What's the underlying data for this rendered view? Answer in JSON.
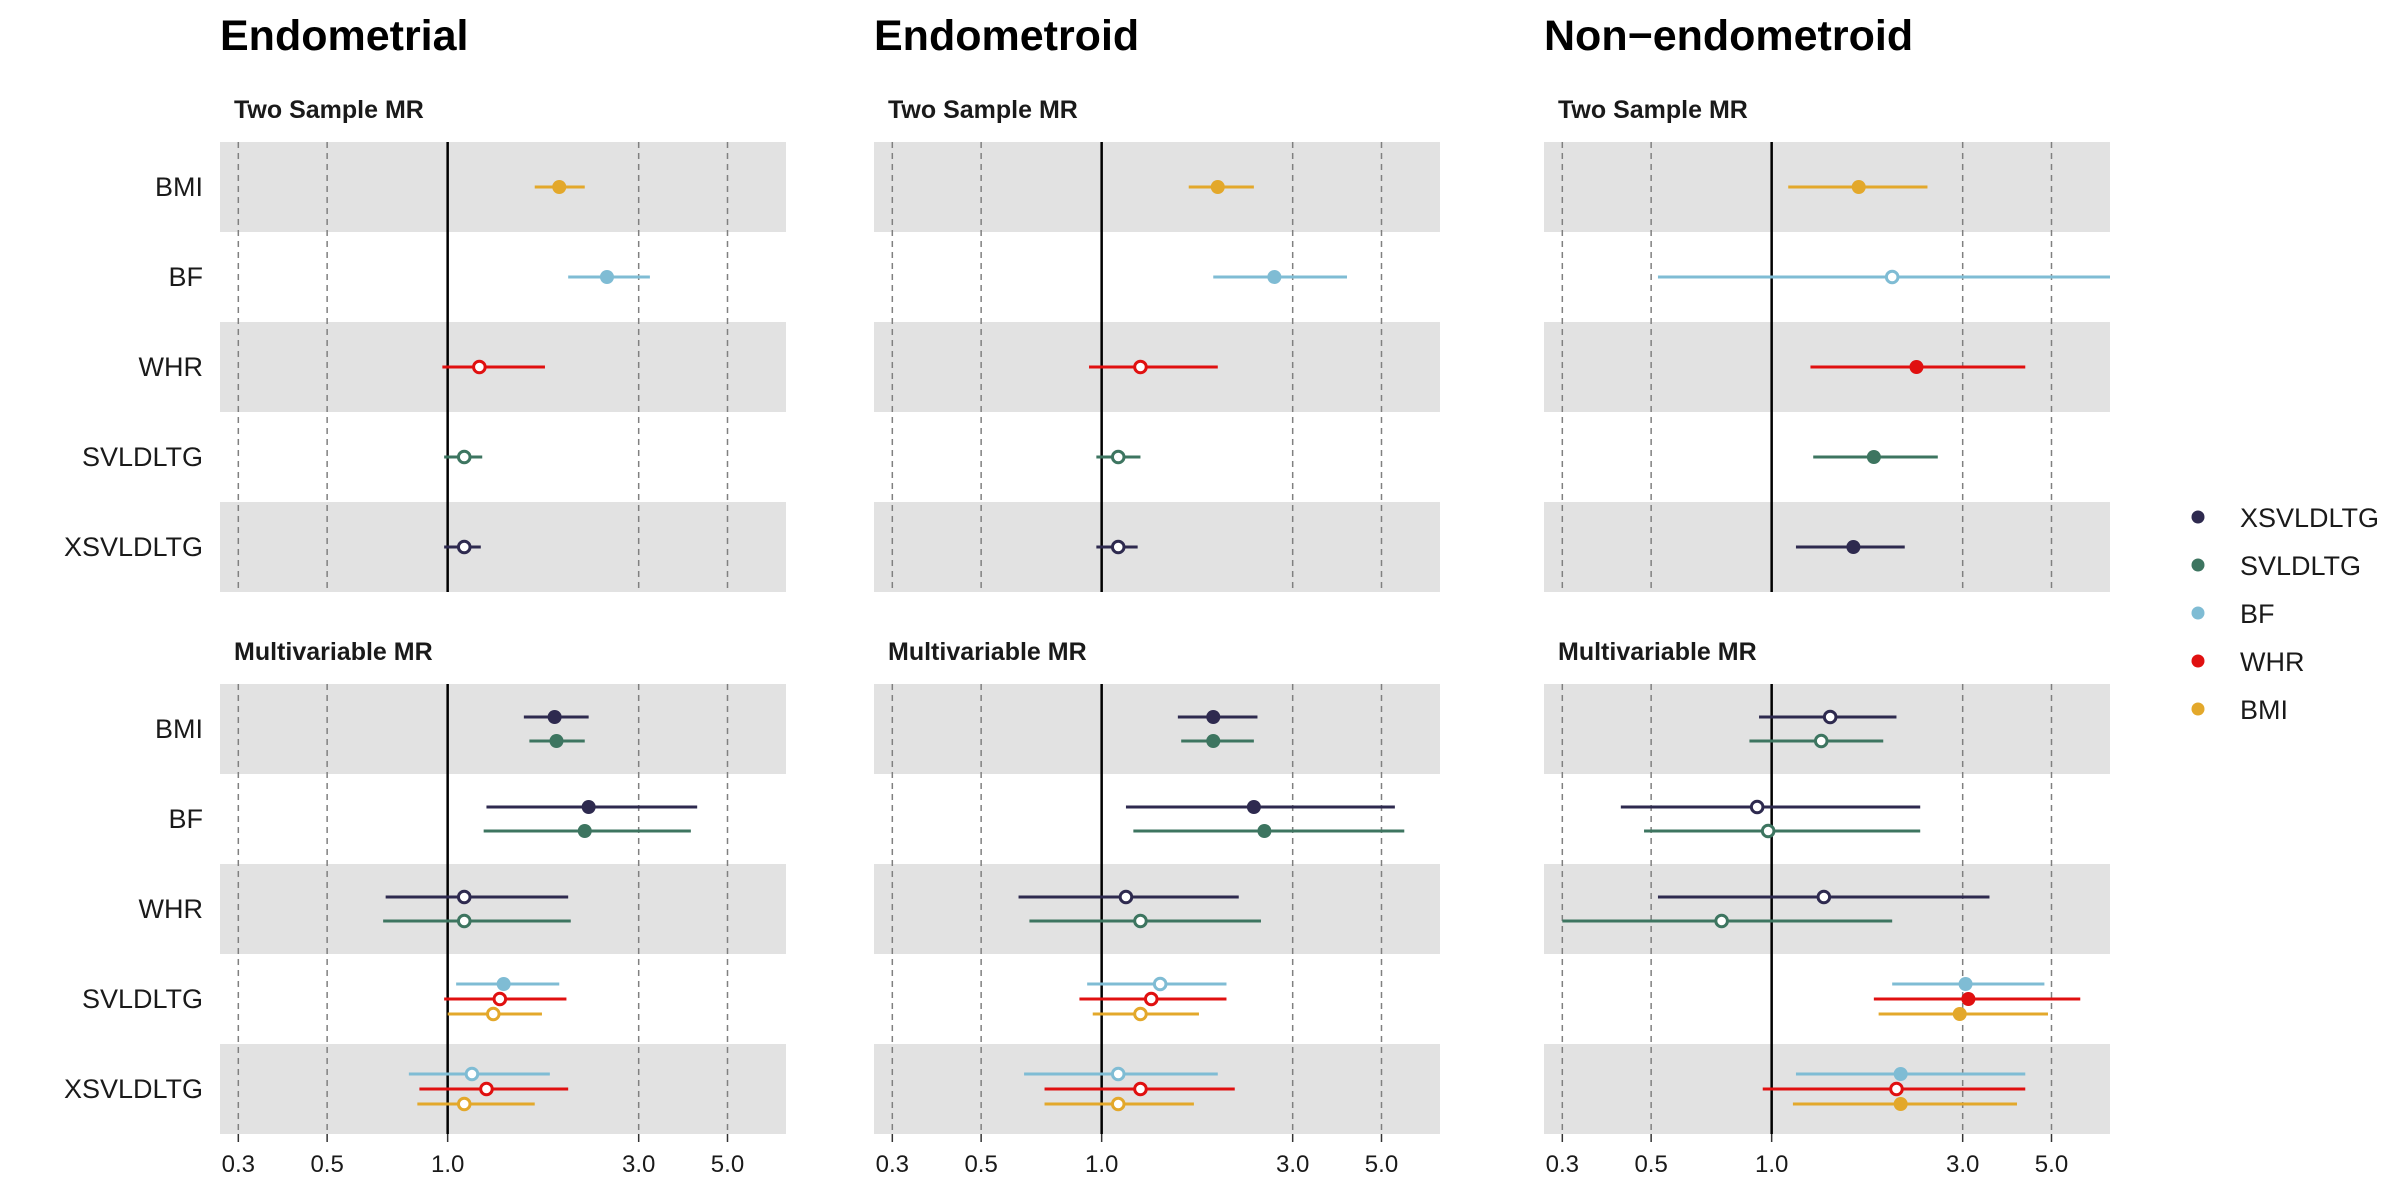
{
  "chart_data": {
    "type": "forest",
    "x_scale": "log",
    "xlim": [
      0.27,
      7.0
    ],
    "x_ticks": [
      0.3,
      0.5,
      1.0,
      3.0,
      5.0
    ],
    "x_tick_labels": [
      "0.3",
      "0.5",
      "1.0",
      "3.0",
      "5.0"
    ],
    "reference_line": 1.0,
    "legend": {
      "position": "right",
      "entries": [
        {
          "name": "XSVLDLTG",
          "color": "#2e2a4f"
        },
        {
          "name": "SVLDLTG",
          "color": "#3d7560"
        },
        {
          "name": "BF",
          "color": "#7fbcd4"
        },
        {
          "name": "WHR",
          "color": "#e01010"
        },
        {
          "name": "BMI",
          "color": "#e3a82b"
        }
      ]
    },
    "note": "filled circle = significant estimate; open circle = non-significant",
    "columns": [
      {
        "title": "Endometrial",
        "panels": [
          {
            "title": "Two Sample MR",
            "rows": [
              {
                "label": "BMI",
                "estimates": [
                  {
                    "exposure": "BMI",
                    "est": 1.9,
                    "lo": 1.65,
                    "hi": 2.2,
                    "filled": true
                  }
                ]
              },
              {
                "label": "BF",
                "estimates": [
                  {
                    "exposure": "BF",
                    "est": 2.5,
                    "lo": 2.0,
                    "hi": 3.2,
                    "filled": true
                  }
                ]
              },
              {
                "label": "WHR",
                "estimates": [
                  {
                    "exposure": "WHR",
                    "est": 1.2,
                    "lo": 0.97,
                    "hi": 1.75,
                    "filled": false
                  }
                ]
              },
              {
                "label": "SVLDLTG",
                "estimates": [
                  {
                    "exposure": "SVLDLTG",
                    "est": 1.1,
                    "lo": 0.98,
                    "hi": 1.22,
                    "filled": false
                  }
                ]
              },
              {
                "label": "XSVLDLTG",
                "estimates": [
                  {
                    "exposure": "XSVLDLTG",
                    "est": 1.1,
                    "lo": 0.98,
                    "hi": 1.21,
                    "filled": false
                  }
                ]
              }
            ]
          },
          {
            "title": "Multivariable MR",
            "rows": [
              {
                "label": "BMI",
                "estimates": [
                  {
                    "exposure": "XSVLDLTG",
                    "est": 1.85,
                    "lo": 1.55,
                    "hi": 2.25,
                    "filled": true
                  },
                  {
                    "exposure": "SVLDLTG",
                    "est": 1.87,
                    "lo": 1.6,
                    "hi": 2.2,
                    "filled": true
                  }
                ]
              },
              {
                "label": "BF",
                "estimates": [
                  {
                    "exposure": "XSVLDLTG",
                    "est": 2.25,
                    "lo": 1.25,
                    "hi": 4.2,
                    "filled": true
                  },
                  {
                    "exposure": "SVLDLTG",
                    "est": 2.2,
                    "lo": 1.23,
                    "hi": 4.05,
                    "filled": true
                  }
                ]
              },
              {
                "label": "WHR",
                "estimates": [
                  {
                    "exposure": "XSVLDLTG",
                    "est": 1.1,
                    "lo": 0.7,
                    "hi": 2.0,
                    "filled": false
                  },
                  {
                    "exposure": "SVLDLTG",
                    "est": 1.1,
                    "lo": 0.69,
                    "hi": 2.03,
                    "filled": false
                  }
                ]
              },
              {
                "label": "SVLDLTG",
                "estimates": [
                  {
                    "exposure": "BF",
                    "est": 1.38,
                    "lo": 1.05,
                    "hi": 1.9,
                    "filled": true
                  },
                  {
                    "exposure": "WHR",
                    "est": 1.35,
                    "lo": 0.98,
                    "hi": 1.98,
                    "filled": false
                  },
                  {
                    "exposure": "BMI",
                    "est": 1.3,
                    "lo": 1.0,
                    "hi": 1.72,
                    "filled": false
                  }
                ]
              },
              {
                "label": "XSVLDLTG",
                "estimates": [
                  {
                    "exposure": "BF",
                    "est": 1.15,
                    "lo": 0.8,
                    "hi": 1.8,
                    "filled": false
                  },
                  {
                    "exposure": "WHR",
                    "est": 1.25,
                    "lo": 0.85,
                    "hi": 2.0,
                    "filled": false
                  },
                  {
                    "exposure": "BMI",
                    "est": 1.1,
                    "lo": 0.84,
                    "hi": 1.65,
                    "filled": false
                  }
                ]
              }
            ]
          }
        ]
      },
      {
        "title": "Endometroid",
        "panels": [
          {
            "title": "Two Sample MR",
            "rows": [
              {
                "label": "BMI",
                "estimates": [
                  {
                    "exposure": "BMI",
                    "est": 1.95,
                    "lo": 1.65,
                    "hi": 2.4,
                    "filled": true
                  }
                ]
              },
              {
                "label": "BF",
                "estimates": [
                  {
                    "exposure": "BF",
                    "est": 2.7,
                    "lo": 1.9,
                    "hi": 4.1,
                    "filled": true
                  }
                ]
              },
              {
                "label": "WHR",
                "estimates": [
                  {
                    "exposure": "WHR",
                    "est": 1.25,
                    "lo": 0.93,
                    "hi": 1.95,
                    "filled": false
                  }
                ]
              },
              {
                "label": "SVLDLTG",
                "estimates": [
                  {
                    "exposure": "SVLDLTG",
                    "est": 1.1,
                    "lo": 0.97,
                    "hi": 1.25,
                    "filled": false
                  }
                ]
              },
              {
                "label": "XSVLDLTG",
                "estimates": [
                  {
                    "exposure": "XSVLDLTG",
                    "est": 1.1,
                    "lo": 0.97,
                    "hi": 1.23,
                    "filled": false
                  }
                ]
              }
            ]
          },
          {
            "title": "Multivariable MR",
            "rows": [
              {
                "label": "BMI",
                "estimates": [
                  {
                    "exposure": "XSVLDLTG",
                    "est": 1.9,
                    "lo": 1.55,
                    "hi": 2.45,
                    "filled": true
                  },
                  {
                    "exposure": "SVLDLTG",
                    "est": 1.9,
                    "lo": 1.58,
                    "hi": 2.4,
                    "filled": true
                  }
                ]
              },
              {
                "label": "BF",
                "estimates": [
                  {
                    "exposure": "XSVLDLTG",
                    "est": 2.4,
                    "lo": 1.15,
                    "hi": 5.4,
                    "filled": true
                  },
                  {
                    "exposure": "SVLDLTG",
                    "est": 2.55,
                    "lo": 1.2,
                    "hi": 5.7,
                    "filled": true
                  }
                ]
              },
              {
                "label": "WHR",
                "estimates": [
                  {
                    "exposure": "XSVLDLTG",
                    "est": 1.15,
                    "lo": 0.62,
                    "hi": 2.2,
                    "filled": false
                  },
                  {
                    "exposure": "SVLDLTG",
                    "est": 1.25,
                    "lo": 0.66,
                    "hi": 2.5,
                    "filled": false
                  }
                ]
              },
              {
                "label": "SVLDLTG",
                "estimates": [
                  {
                    "exposure": "BF",
                    "est": 1.4,
                    "lo": 0.92,
                    "hi": 2.05,
                    "filled": false
                  },
                  {
                    "exposure": "WHR",
                    "est": 1.33,
                    "lo": 0.88,
                    "hi": 2.05,
                    "filled": false
                  },
                  {
                    "exposure": "BMI",
                    "est": 1.25,
                    "lo": 0.95,
                    "hi": 1.75,
                    "filled": false
                  }
                ]
              },
              {
                "label": "XSVLDLTG",
                "estimates": [
                  {
                    "exposure": "BF",
                    "est": 1.1,
                    "lo": 0.64,
                    "hi": 1.95,
                    "filled": false
                  },
                  {
                    "exposure": "WHR",
                    "est": 1.25,
                    "lo": 0.72,
                    "hi": 2.15,
                    "filled": false
                  },
                  {
                    "exposure": "BMI",
                    "est": 1.1,
                    "lo": 0.72,
                    "hi": 1.7,
                    "filled": false
                  }
                ]
              }
            ]
          }
        ]
      },
      {
        "title": "Non−endometroid",
        "panels": [
          {
            "title": "Two Sample MR",
            "rows": [
              {
                "label": "BMI",
                "estimates": [
                  {
                    "exposure": "BMI",
                    "est": 1.65,
                    "lo": 1.1,
                    "hi": 2.45,
                    "filled": true
                  }
                ]
              },
              {
                "label": "BF",
                "estimates": [
                  {
                    "exposure": "BF",
                    "est": 2.0,
                    "lo": 0.52,
                    "hi": 7.0,
                    "filled": false
                  }
                ]
              },
              {
                "label": "WHR",
                "estimates": [
                  {
                    "exposure": "WHR",
                    "est": 2.3,
                    "lo": 1.25,
                    "hi": 4.3,
                    "filled": true
                  }
                ]
              },
              {
                "label": "SVLDLTG",
                "estimates": [
                  {
                    "exposure": "SVLDLTG",
                    "est": 1.8,
                    "lo": 1.27,
                    "hi": 2.6,
                    "filled": true
                  }
                ]
              },
              {
                "label": "XSVLDLTG",
                "estimates": [
                  {
                    "exposure": "XSVLDLTG",
                    "est": 1.6,
                    "lo": 1.15,
                    "hi": 2.15,
                    "filled": true
                  }
                ]
              }
            ]
          },
          {
            "title": "Multivariable MR",
            "rows": [
              {
                "label": "BMI",
                "estimates": [
                  {
                    "exposure": "XSVLDLTG",
                    "est": 1.4,
                    "lo": 0.93,
                    "hi": 2.05,
                    "filled": false
                  },
                  {
                    "exposure": "SVLDLTG",
                    "est": 1.33,
                    "lo": 0.88,
                    "hi": 1.9,
                    "filled": false
                  }
                ]
              },
              {
                "label": "BF",
                "estimates": [
                  {
                    "exposure": "XSVLDLTG",
                    "est": 0.92,
                    "lo": 0.42,
                    "hi": 2.35,
                    "filled": false
                  },
                  {
                    "exposure": "SVLDLTG",
                    "est": 0.98,
                    "lo": 0.48,
                    "hi": 2.35,
                    "filled": false
                  }
                ]
              },
              {
                "label": "WHR",
                "estimates": [
                  {
                    "exposure": "XSVLDLTG",
                    "est": 1.35,
                    "lo": 0.52,
                    "hi": 3.5,
                    "filled": false
                  },
                  {
                    "exposure": "SVLDLTG",
                    "est": 0.75,
                    "lo": 0.3,
                    "hi": 2.0,
                    "filled": false
                  }
                ]
              },
              {
                "label": "SVLDLTG",
                "estimates": [
                  {
                    "exposure": "BF",
                    "est": 3.05,
                    "lo": 2.0,
                    "hi": 4.8,
                    "filled": true
                  },
                  {
                    "exposure": "WHR",
                    "est": 3.1,
                    "lo": 1.8,
                    "hi": 5.9,
                    "filled": true
                  },
                  {
                    "exposure": "BMI",
                    "est": 2.95,
                    "lo": 1.85,
                    "hi": 4.9,
                    "filled": true
                  }
                ]
              },
              {
                "label": "XSVLDLTG",
                "estimates": [
                  {
                    "exposure": "BF",
                    "est": 2.1,
                    "lo": 1.15,
                    "hi": 4.3,
                    "filled": true
                  },
                  {
                    "exposure": "WHR",
                    "est": 2.05,
                    "lo": 0.95,
                    "hi": 4.3,
                    "filled": false
                  },
                  {
                    "exposure": "BMI",
                    "est": 2.1,
                    "lo": 1.13,
                    "hi": 4.1,
                    "filled": true
                  }
                ]
              }
            ]
          }
        ]
      }
    ]
  }
}
